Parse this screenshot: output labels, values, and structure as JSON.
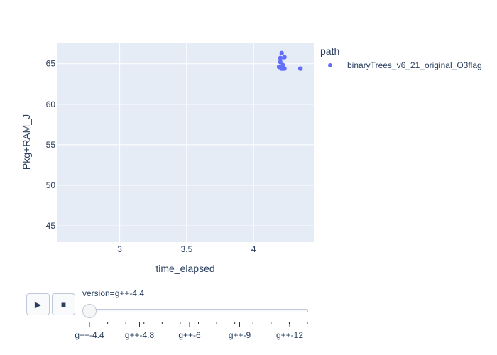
{
  "chart_data": {
    "type": "scatter",
    "xlabel": "time_elapsed",
    "ylabel": "Pkg+RAM_J",
    "xlim": [
      2.53,
      4.45
    ],
    "ylim": [
      43.0,
      67.6
    ],
    "x_ticks": [
      3,
      3.5,
      4
    ],
    "y_ticks": [
      45,
      50,
      55,
      60,
      65
    ],
    "grid": true,
    "legend_position": "top-right",
    "legend_title": "path",
    "series": [
      {
        "name": "binaryTrees_v6_21_original_O3flag",
        "color": "#636efa",
        "points": [
          {
            "x": 4.21,
            "y": 66.3
          },
          {
            "x": 4.23,
            "y": 65.8
          },
          {
            "x": 4.2,
            "y": 65.7
          },
          {
            "x": 4.2,
            "y": 65.2
          },
          {
            "x": 4.19,
            "y": 64.6
          },
          {
            "x": 4.21,
            "y": 64.4
          },
          {
            "x": 4.22,
            "y": 64.8
          },
          {
            "x": 4.23,
            "y": 64.4
          },
          {
            "x": 4.35,
            "y": 64.4
          }
        ]
      }
    ]
  },
  "slider": {
    "current_label": "version=g++-4.4",
    "steps": [
      "g++-4.4",
      "g++-4.8",
      "g++-6",
      "g++-9",
      "g++-12"
    ],
    "active_index": 0
  },
  "controls": {
    "play": "▶",
    "stop": "■"
  }
}
